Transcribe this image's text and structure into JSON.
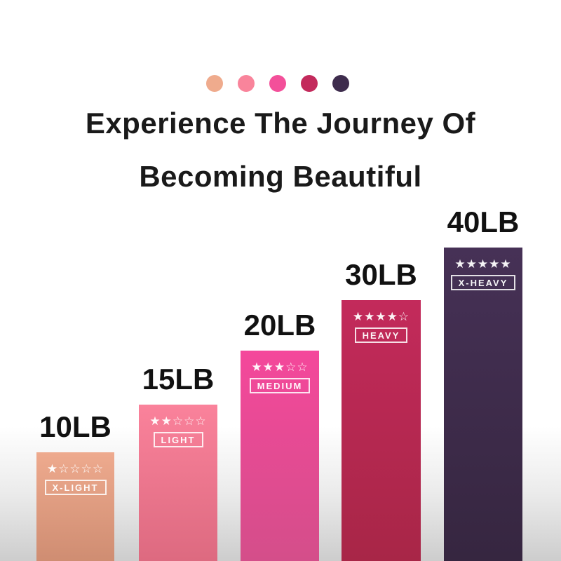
{
  "header": {
    "palette_dots": [
      "#efab8d",
      "#f9849b",
      "#f3509a",
      "#c32a5c",
      "#3e2c4d"
    ],
    "title_line1": "Experience The Journey Of",
    "title_line2": "Becoming Beautiful",
    "title_color": "#1a1a1a"
  },
  "chart_data": {
    "type": "bar",
    "title": "Experience The Journey Of Becoming Beautiful",
    "categories": [
      "10LB",
      "15LB",
      "20LB",
      "30LB",
      "40LB"
    ],
    "values": [
      10,
      15,
      20,
      30,
      40
    ],
    "unit": "LB",
    "legend_position": "none",
    "grid": false,
    "axes_shown": false,
    "bars": [
      {
        "weight_label": "10LB",
        "resistance_level": "X-LIGHT",
        "rating": 1,
        "rating_max": 5,
        "stars_text": "★☆☆☆☆",
        "color_top": "#eeaa8e",
        "color_bottom": "#cf8d72"
      },
      {
        "weight_label": "15LB",
        "resistance_level": "LIGHT",
        "rating": 2,
        "rating_max": 5,
        "stars_text": "★★☆☆☆",
        "color_top": "#fa829b",
        "color_bottom": "#dd6a80"
      },
      {
        "weight_label": "20LB",
        "resistance_level": "MEDIUM",
        "rating": 3,
        "rating_max": 5,
        "stars_text": "★★★☆☆",
        "color_top": "#f4489b",
        "color_bottom": "#d44e8a"
      },
      {
        "weight_label": "30LB",
        "resistance_level": "HEAVY",
        "rating": 4,
        "rating_max": 5,
        "stars_text": "★★★★☆",
        "color_top": "#c32a5b",
        "color_bottom": "#a82647"
      },
      {
        "weight_label": "40LB",
        "resistance_level": "X-HEAVY",
        "rating": 5,
        "rating_max": 5,
        "stars_text": "★★★★★",
        "color_top": "#463156",
        "color_bottom": "#362640"
      }
    ]
  }
}
